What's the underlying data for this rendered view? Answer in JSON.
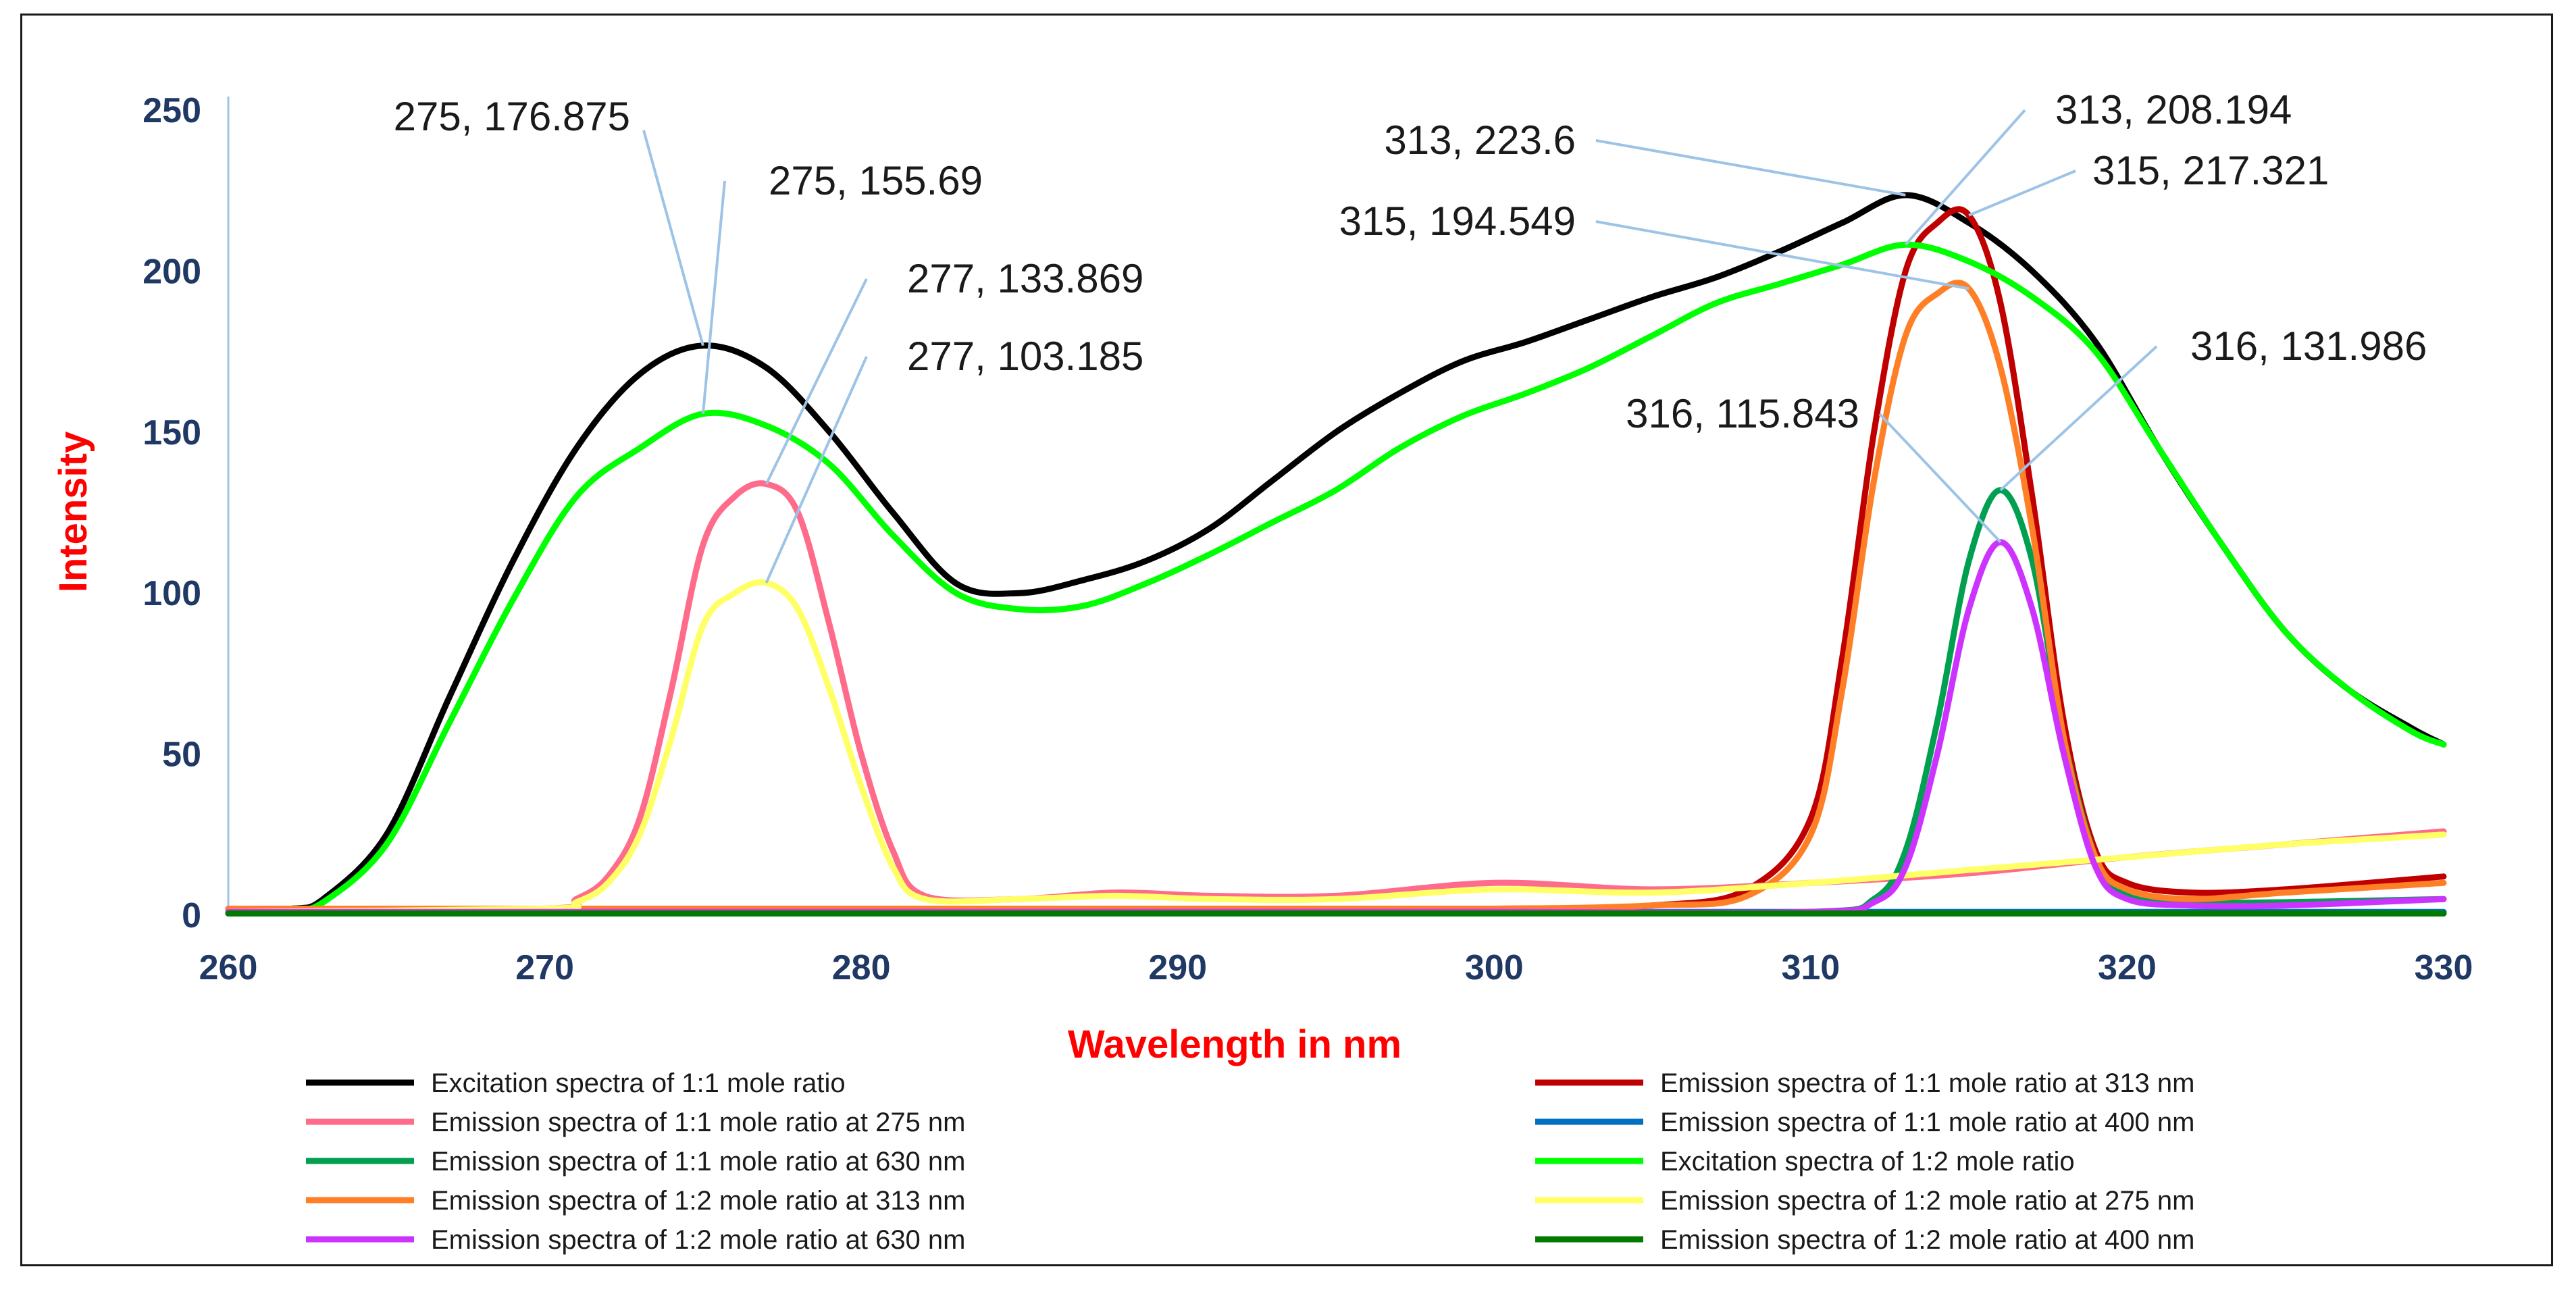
{
  "chart_data": {
    "type": "line",
    "title": "",
    "xlabel": "Wavelength in nm",
    "ylabel": "Intensity",
    "xlim": [
      260,
      330
    ],
    "ylim": [
      0,
      250
    ],
    "xticks": [
      260,
      270,
      280,
      290,
      300,
      310,
      320,
      330
    ],
    "yticks": [
      0,
      50,
      100,
      150,
      200,
      250
    ],
    "grid": false,
    "legend_position": "bottom",
    "series": [
      {
        "name": "Excitation spectra of 1:1 mole ratio",
        "color": "#000000",
        "x": [
          260,
          262,
          263,
          265,
          267,
          269,
          271,
          273,
          275,
          277,
          279,
          281,
          283,
          285,
          287,
          289,
          291,
          293,
          295,
          297,
          299,
          301,
          303,
          305,
          307,
          309,
          311,
          313,
          315,
          317,
          319,
          321,
          323,
          325,
          327,
          329,
          330
        ],
        "y": [
          1,
          2,
          5,
          25,
          68,
          110,
          145,
          168,
          176.875,
          170,
          150,
          125,
          103,
          100,
          104,
          110,
          120,
          135,
          150,
          162,
          172,
          178,
          185,
          192,
          198,
          206,
          215,
          223.6,
          215,
          200,
          178,
          145,
          115,
          88,
          70,
          58,
          53
        ]
      },
      {
        "name": "Emission spectra of 1:1 mole ratio at 313 nm",
        "color": "#c00000",
        "x": [
          260,
          270,
          280,
          290,
          300,
          305,
          308,
          310,
          311,
          312,
          313,
          314,
          315,
          316,
          317,
          318,
          319,
          320,
          322,
          325,
          330
        ],
        "y": [
          2,
          2,
          2,
          2,
          2,
          3,
          8,
          30,
          80,
          150,
          200,
          215,
          217.321,
          190,
          130,
          60,
          20,
          10,
          7,
          8,
          12
        ]
      },
      {
        "name": "Emission spectra of 1:1 mole ratio at 275 nm",
        "color": "#ff6b8a",
        "x": [
          260,
          270,
          271,
          272,
          273,
          274,
          275,
          276,
          277,
          278,
          279,
          280,
          281,
          282,
          285,
          288,
          291,
          295,
          300,
          305,
          310,
          315,
          320,
          325,
          330
        ],
        "y": [
          1,
          2,
          5,
          12,
          30,
          70,
          115,
          130,
          133.869,
          125,
          90,
          50,
          20,
          6,
          5,
          7,
          6,
          6,
          10,
          8,
          10,
          13,
          18,
          22,
          26
        ]
      },
      {
        "name": "Emission spectra of 1:1 mole ratio at 400 nm",
        "color": "#0070c0",
        "x": [
          260,
          270,
          280,
          290,
          300,
          310,
          320,
          330
        ],
        "y": [
          1,
          1,
          1,
          1,
          1,
          1,
          1,
          1
        ]
      },
      {
        "name": "Emission spectra of 1:1 mole ratio at 630 nm",
        "color": "#00a050",
        "x": [
          260,
          270,
          280,
          290,
          300,
          310,
          312,
          313,
          314,
          315,
          316,
          317,
          318,
          319,
          320,
          322,
          325,
          330
        ],
        "y": [
          1,
          1,
          1,
          1,
          1,
          1,
          5,
          20,
          60,
          110,
          131.986,
          110,
          55,
          18,
          6,
          4,
          4,
          5
        ]
      },
      {
        "name": "Excitation spectra of 1:2 mole ratio",
        "color": "#00ff00",
        "x": [
          260,
          262,
          263,
          265,
          267,
          269,
          271,
          273,
          275,
          277,
          279,
          281,
          283,
          285,
          287,
          289,
          291,
          293,
          295,
          297,
          299,
          301,
          303,
          305,
          307,
          309,
          311,
          313,
          315,
          317,
          319,
          321,
          323,
          325,
          327,
          329,
          330
        ],
        "y": [
          1,
          2,
          4,
          22,
          60,
          98,
          130,
          145,
          155.69,
          152,
          140,
          118,
          100,
          95,
          96,
          103,
          112,
          122,
          132,
          145,
          155,
          162,
          170,
          180,
          190,
          196,
          202,
          208.194,
          203,
          192,
          175,
          145,
          115,
          88,
          70,
          57,
          53
        ]
      },
      {
        "name": "Emission spectra of 1:2 mole ratio at 313 nm",
        "color": "#ff7f27",
        "x": [
          260,
          270,
          280,
          290,
          300,
          305,
          308,
          310,
          311,
          312,
          313,
          314,
          315,
          316,
          317,
          318,
          319,
          320,
          322,
          325,
          330
        ],
        "y": [
          2,
          2,
          2,
          2,
          2,
          3,
          6,
          25,
          70,
          135,
          180,
          193,
          194.549,
          170,
          120,
          55,
          18,
          8,
          5,
          7,
          10
        ]
      },
      {
        "name": "Emission spectra of 1:2 mole ratio at 275 nm",
        "color": "#ffff66",
        "x": [
          260,
          270,
          271,
          272,
          273,
          274,
          275,
          276,
          277,
          278,
          279,
          280,
          281,
          282,
          285,
          288,
          291,
          295,
          300,
          305,
          310,
          315,
          320,
          325,
          330
        ],
        "y": [
          1,
          2,
          4,
          10,
          25,
          55,
          90,
          100,
          103.185,
          95,
          70,
          40,
          15,
          5,
          5,
          6,
          5,
          5,
          8,
          7,
          10,
          14,
          18,
          22,
          25
        ]
      },
      {
        "name": "Emission spectra of 1:2 mole ratio at 630 nm",
        "color": "#cc33ff",
        "x": [
          260,
          270,
          280,
          290,
          300,
          310,
          312,
          313,
          314,
          315,
          316,
          317,
          318,
          319,
          320,
          322,
          325,
          330
        ],
        "y": [
          1,
          1,
          1,
          1,
          1,
          1,
          4,
          15,
          50,
          95,
          115.843,
          95,
          50,
          15,
          5,
          3,
          3,
          5
        ]
      },
      {
        "name": "Emission spectra of 1:2 mole ratio at 400 nm",
        "color": "#007a00",
        "x": [
          260,
          270,
          280,
          290,
          300,
          310,
          320,
          330
        ],
        "y": [
          0.5,
          0.5,
          0.5,
          0.5,
          0.5,
          0.5,
          0.5,
          0.5
        ]
      }
    ],
    "annotations": [
      {
        "label": "275, 176.875",
        "x": 275,
        "y": 176.875
      },
      {
        "label": "275, 155.69",
        "x": 275,
        "y": 155.69
      },
      {
        "label": "277, 133.869",
        "x": 277,
        "y": 133.869
      },
      {
        "label": "277, 103.185",
        "x": 277,
        "y": 103.185
      },
      {
        "label": "313, 223.6",
        "x": 313,
        "y": 223.6
      },
      {
        "label": "313, 208.194",
        "x": 313,
        "y": 208.194
      },
      {
        "label": "315, 217.321",
        "x": 315,
        "y": 217.321
      },
      {
        "label": "315, 194.549",
        "x": 315,
        "y": 194.549
      },
      {
        "label": "316, 131.986",
        "x": 316,
        "y": 131.986
      },
      {
        "label": "316, 115.843",
        "x": 316,
        "y": 115.843
      }
    ]
  }
}
